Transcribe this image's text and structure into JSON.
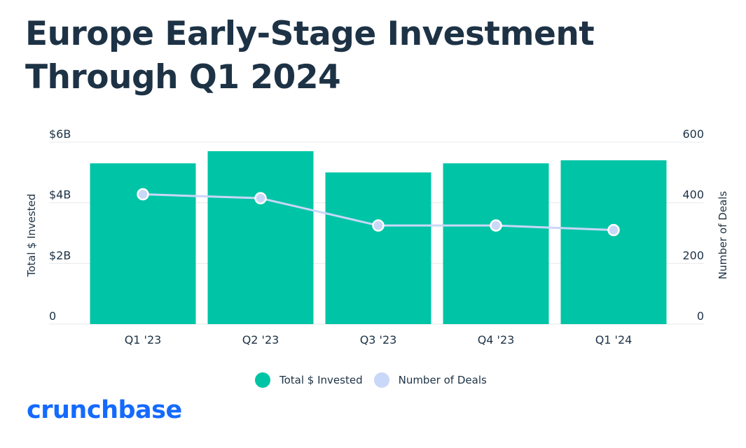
{
  "title": "Europe Early-Stage Investment Through Q1 2024",
  "logo": {
    "text": "crunchbase"
  },
  "colors": {
    "bar": "#00c4a6",
    "line": "#c9d7f8",
    "text": "#1d3245",
    "grid": "#e6e9ed",
    "logo": "#146aff"
  },
  "chart_data": {
    "type": "bar",
    "categories": [
      "Q1 '23",
      "Q2 '23",
      "Q3 '23",
      "Q4 '23",
      "Q1 '24"
    ],
    "series": [
      {
        "name": "Total $ Invested",
        "type": "bar",
        "axis": "left",
        "values": [
          5.3,
          5.7,
          5.0,
          5.3,
          5.4
        ]
      },
      {
        "name": "Number of Deals",
        "type": "line",
        "axis": "right",
        "values": [
          428,
          415,
          325,
          325,
          310
        ]
      }
    ],
    "y_left": {
      "label": "Total $ Invested",
      "ylim": [
        0,
        6
      ],
      "ticks": [
        0,
        2,
        4,
        6
      ],
      "tick_labels": [
        "0",
        "$2B",
        "$4B",
        "$6B"
      ]
    },
    "y_right": {
      "label": "Number of Deals",
      "ylim": [
        0,
        600
      ],
      "ticks": [
        0,
        200,
        400,
        600
      ],
      "tick_labels": [
        "0",
        "200",
        "400",
        "600"
      ]
    },
    "legend": {
      "position": "bottom",
      "entries": [
        "Total $ Invested",
        "Number of Deals"
      ]
    },
    "grid": true
  }
}
